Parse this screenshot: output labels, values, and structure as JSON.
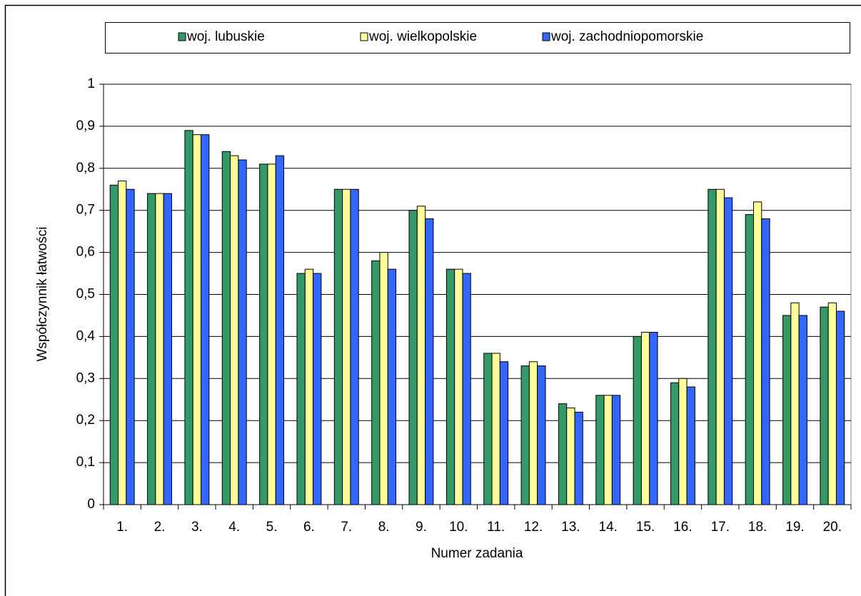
{
  "chart_data": {
    "type": "bar",
    "x_label": "Numer zadania",
    "y_label": "Współczynnik łatwości",
    "categories": [
      "1.",
      "2.",
      "3.",
      "4.",
      "5.",
      "6.",
      "7.",
      "8.",
      "9.",
      "10.",
      "11.",
      "12.",
      "13.",
      "14.",
      "15.",
      "16.",
      "17.",
      "18.",
      "19.",
      "20."
    ],
    "series": [
      {
        "name": "woj. lubuskie",
        "color": "#339966",
        "values": [
          0.76,
          0.74,
          0.89,
          0.84,
          0.81,
          0.55,
          0.75,
          0.58,
          0.7,
          0.56,
          0.36,
          0.33,
          0.24,
          0.26,
          0.4,
          0.29,
          0.75,
          0.69,
          0.45,
          0.47
        ]
      },
      {
        "name": "woj. wielkopolskie",
        "color": "#ffff99",
        "values": [
          0.77,
          0.74,
          0.88,
          0.83,
          0.81,
          0.56,
          0.75,
          0.6,
          0.71,
          0.56,
          0.36,
          0.34,
          0.23,
          0.26,
          0.41,
          0.3,
          0.75,
          0.72,
          0.48,
          0.48
        ]
      },
      {
        "name": "woj. zachodniopomorskie",
        "color": "#3366ff",
        "values": [
          0.75,
          0.74,
          0.88,
          0.82,
          0.83,
          0.55,
          0.75,
          0.56,
          0.68,
          0.55,
          0.34,
          0.33,
          0.22,
          0.26,
          0.41,
          0.28,
          0.73,
          0.68,
          0.45,
          0.46
        ]
      }
    ],
    "ylim": [
      0,
      1
    ],
    "yticks": [
      0,
      {
        "value": 0.1,
        "label": "0,1"
      },
      {
        "value": 0.2,
        "label": "0,2"
      },
      {
        "value": 0.3,
        "label": "0,3"
      },
      {
        "value": 0.4,
        "label": "0,4"
      },
      {
        "value": 0.5,
        "label": "0,5"
      },
      {
        "value": 0.6,
        "label": "0,6"
      },
      {
        "value": 0.7,
        "label": "0,7"
      },
      {
        "value": 0.8,
        "label": "0,8"
      },
      {
        "value": 0.9,
        "label": "0,9"
      },
      1
    ],
    "grid": true,
    "legend": "top"
  }
}
